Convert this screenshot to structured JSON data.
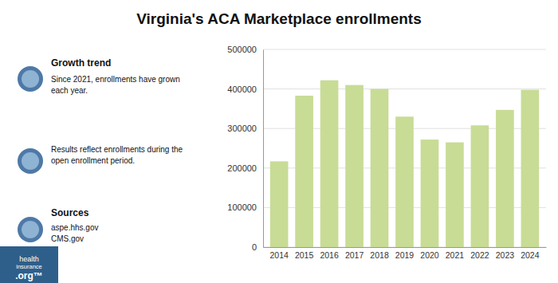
{
  "chart_data": {
    "type": "bar",
    "title": "Virginia's ACA Marketplace enrollments",
    "categories": [
      "2014",
      "2015",
      "2016",
      "2017",
      "2018",
      "2019",
      "2020",
      "2021",
      "2022",
      "2023",
      "2024"
    ],
    "values": [
      217000,
      383000,
      422000,
      410000,
      400000,
      330000,
      272000,
      265000,
      308000,
      347000,
      398000
    ],
    "color": "#c8dc96",
    "ylim": [
      0,
      500000
    ],
    "yticks": [
      0,
      100000,
      200000,
      300000,
      400000,
      500000
    ],
    "grid": true,
    "annotations": [
      "Growth trend",
      "Since 2021, enrollments have grown\neach year.",
      "Results reflect enrollments during the\nopen enrollment period.",
      "Sources",
      "aspe.hhs.gov\nCMS.gov",
      "health",
      "insurance",
      ".org™"
    ]
  }
}
